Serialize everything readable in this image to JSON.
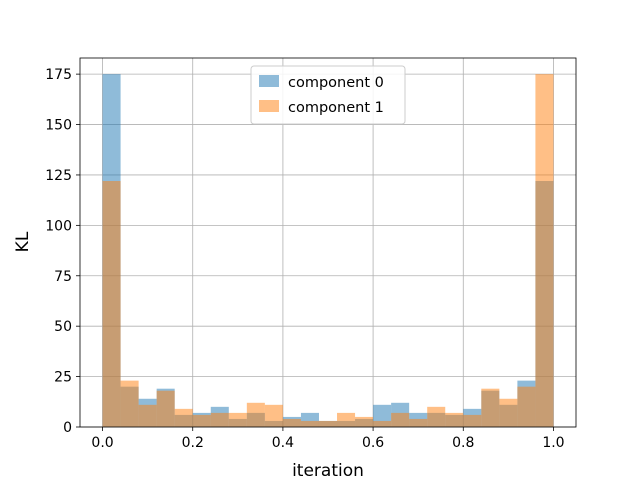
{
  "chart_data": {
    "type": "bar",
    "subtype": "overlaid-histogram",
    "title": "",
    "xlabel": "iteration",
    "ylabel": "KL",
    "xlim": [
      -0.05,
      1.05
    ],
    "ylim": [
      0,
      183
    ],
    "xticks": [
      0.0,
      0.2,
      0.4,
      0.6,
      0.8,
      1.0
    ],
    "xtick_labels": [
      "0.0",
      "0.2",
      "0.4",
      "0.6",
      "0.8",
      "1.0"
    ],
    "yticks": [
      0,
      25,
      50,
      75,
      100,
      125,
      150,
      175
    ],
    "ytick_labels": [
      "0",
      "25",
      "50",
      "75",
      "100",
      "125",
      "150",
      "175"
    ],
    "grid": true,
    "legend_position": "top-center",
    "bin_edges": [
      0.0,
      0.04,
      0.08,
      0.12,
      0.16,
      0.2,
      0.24,
      0.28,
      0.32,
      0.36,
      0.4,
      0.44,
      0.48,
      0.52,
      0.56,
      0.6,
      0.64,
      0.68,
      0.72,
      0.76,
      0.8,
      0.84,
      0.88,
      0.92,
      0.96,
      1.0
    ],
    "series": [
      {
        "name": "component 0",
        "color": "#1f77b4",
        "alpha": 0.5,
        "values": [
          175,
          20,
          14,
          19,
          6,
          7,
          10,
          4,
          7,
          3,
          5,
          7,
          3,
          3,
          4,
          11,
          12,
          7,
          7,
          6,
          9,
          18,
          11,
          23,
          122
        ]
      },
      {
        "name": "component 1",
        "color": "#ff7f0e",
        "alpha": 0.5,
        "values": [
          122,
          23,
          11,
          18,
          9,
          6,
          7,
          7,
          12,
          11,
          4,
          3,
          3,
          7,
          5,
          3,
          7,
          4,
          10,
          7,
          6,
          19,
          14,
          20,
          175
        ]
      }
    ]
  }
}
